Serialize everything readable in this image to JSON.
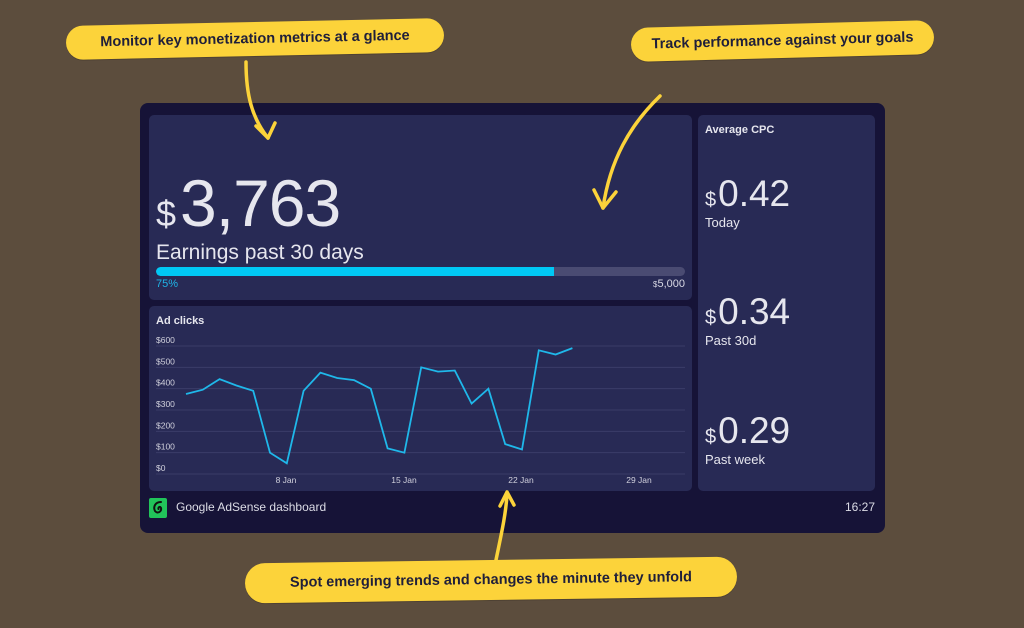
{
  "callouts": {
    "top_left": "Monitor key monetization metrics at a glance",
    "top_right": "Track performance against your goals",
    "bottom": "Spot emerging trends and changes the minute they unfold"
  },
  "earnings": {
    "currency": "$",
    "value": "3,763",
    "label": "Earnings past 30 days",
    "progress_percent": "75%",
    "goal_currency": "$",
    "goal_value": "5,000"
  },
  "ad_clicks": {
    "title": "Ad clicks"
  },
  "cpc": {
    "title": "Average CPC",
    "items": [
      {
        "currency": "$",
        "value": "0.42",
        "label": "Today"
      },
      {
        "currency": "$",
        "value": "0.34",
        "label": "Past 30d"
      },
      {
        "currency": "$",
        "value": "0.29",
        "label": "Past week"
      }
    ]
  },
  "footer": {
    "title": "Google AdSense dashboard",
    "time": "16:27"
  },
  "colors": {
    "accent": "#00c8f5",
    "panel": "#282a55",
    "background": "#161337",
    "callout": "#fcd33a",
    "logo": "#21c35a"
  },
  "chart_data": {
    "type": "line",
    "title": "Ad clicks",
    "xlabel": "",
    "ylabel": "",
    "ylim": [
      0,
      600
    ],
    "y_ticks": [
      "$0",
      "$100",
      "$200",
      "$300",
      "$400",
      "$500",
      "$600"
    ],
    "x_ticks": [
      "8 Jan",
      "15 Jan",
      "22 Jan",
      "29 Jan"
    ],
    "x": [
      "2 Jan",
      "3 Jan",
      "4 Jan",
      "5 Jan",
      "6 Jan",
      "7 Jan",
      "8 Jan",
      "9 Jan",
      "10 Jan",
      "11 Jan",
      "12 Jan",
      "13 Jan",
      "14 Jan",
      "15 Jan",
      "16 Jan",
      "17 Jan",
      "18 Jan",
      "19 Jan",
      "20 Jan",
      "21 Jan",
      "22 Jan",
      "23 Jan",
      "24 Jan",
      "25 Jan"
    ],
    "series": [
      {
        "name": "Ad clicks",
        "values": [
          375,
          395,
          445,
          415,
          390,
          100,
          50,
          390,
          475,
          450,
          440,
          400,
          120,
          100,
          500,
          480,
          485,
          330,
          400,
          140,
          115,
          580,
          560,
          590
        ]
      }
    ],
    "grid": true,
    "legend": "none"
  }
}
